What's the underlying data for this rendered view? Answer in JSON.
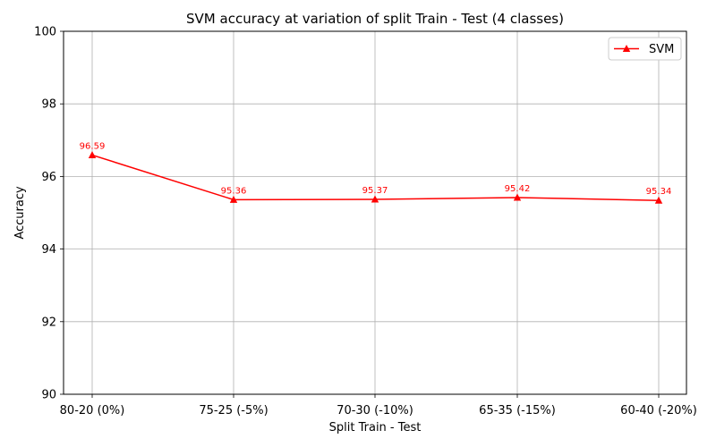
{
  "chart_data": {
    "type": "line",
    "title": "SVM accuracy at variation of split Train - Test (4 classes)",
    "xlabel": "Split Train - Test",
    "ylabel": "Accuracy",
    "categories": [
      "80-20 (0%)",
      "75-25 (-5%)",
      "70-30 (-10%)",
      "65-35 (-15%)",
      "60-40 (-20%)"
    ],
    "series": [
      {
        "name": "SVM",
        "values": [
          96.59,
          95.36,
          95.37,
          95.42,
          95.34
        ],
        "color": "#ff0000",
        "marker": "triangle-up"
      }
    ],
    "data_labels": [
      "96.59",
      "95.36",
      "95.37",
      "95.42",
      "95.34"
    ],
    "ylim": [
      90,
      100
    ],
    "yticks": [
      "90",
      "92",
      "94",
      "96",
      "98",
      "100"
    ],
    "grid": true,
    "legend_position": "top-right"
  }
}
